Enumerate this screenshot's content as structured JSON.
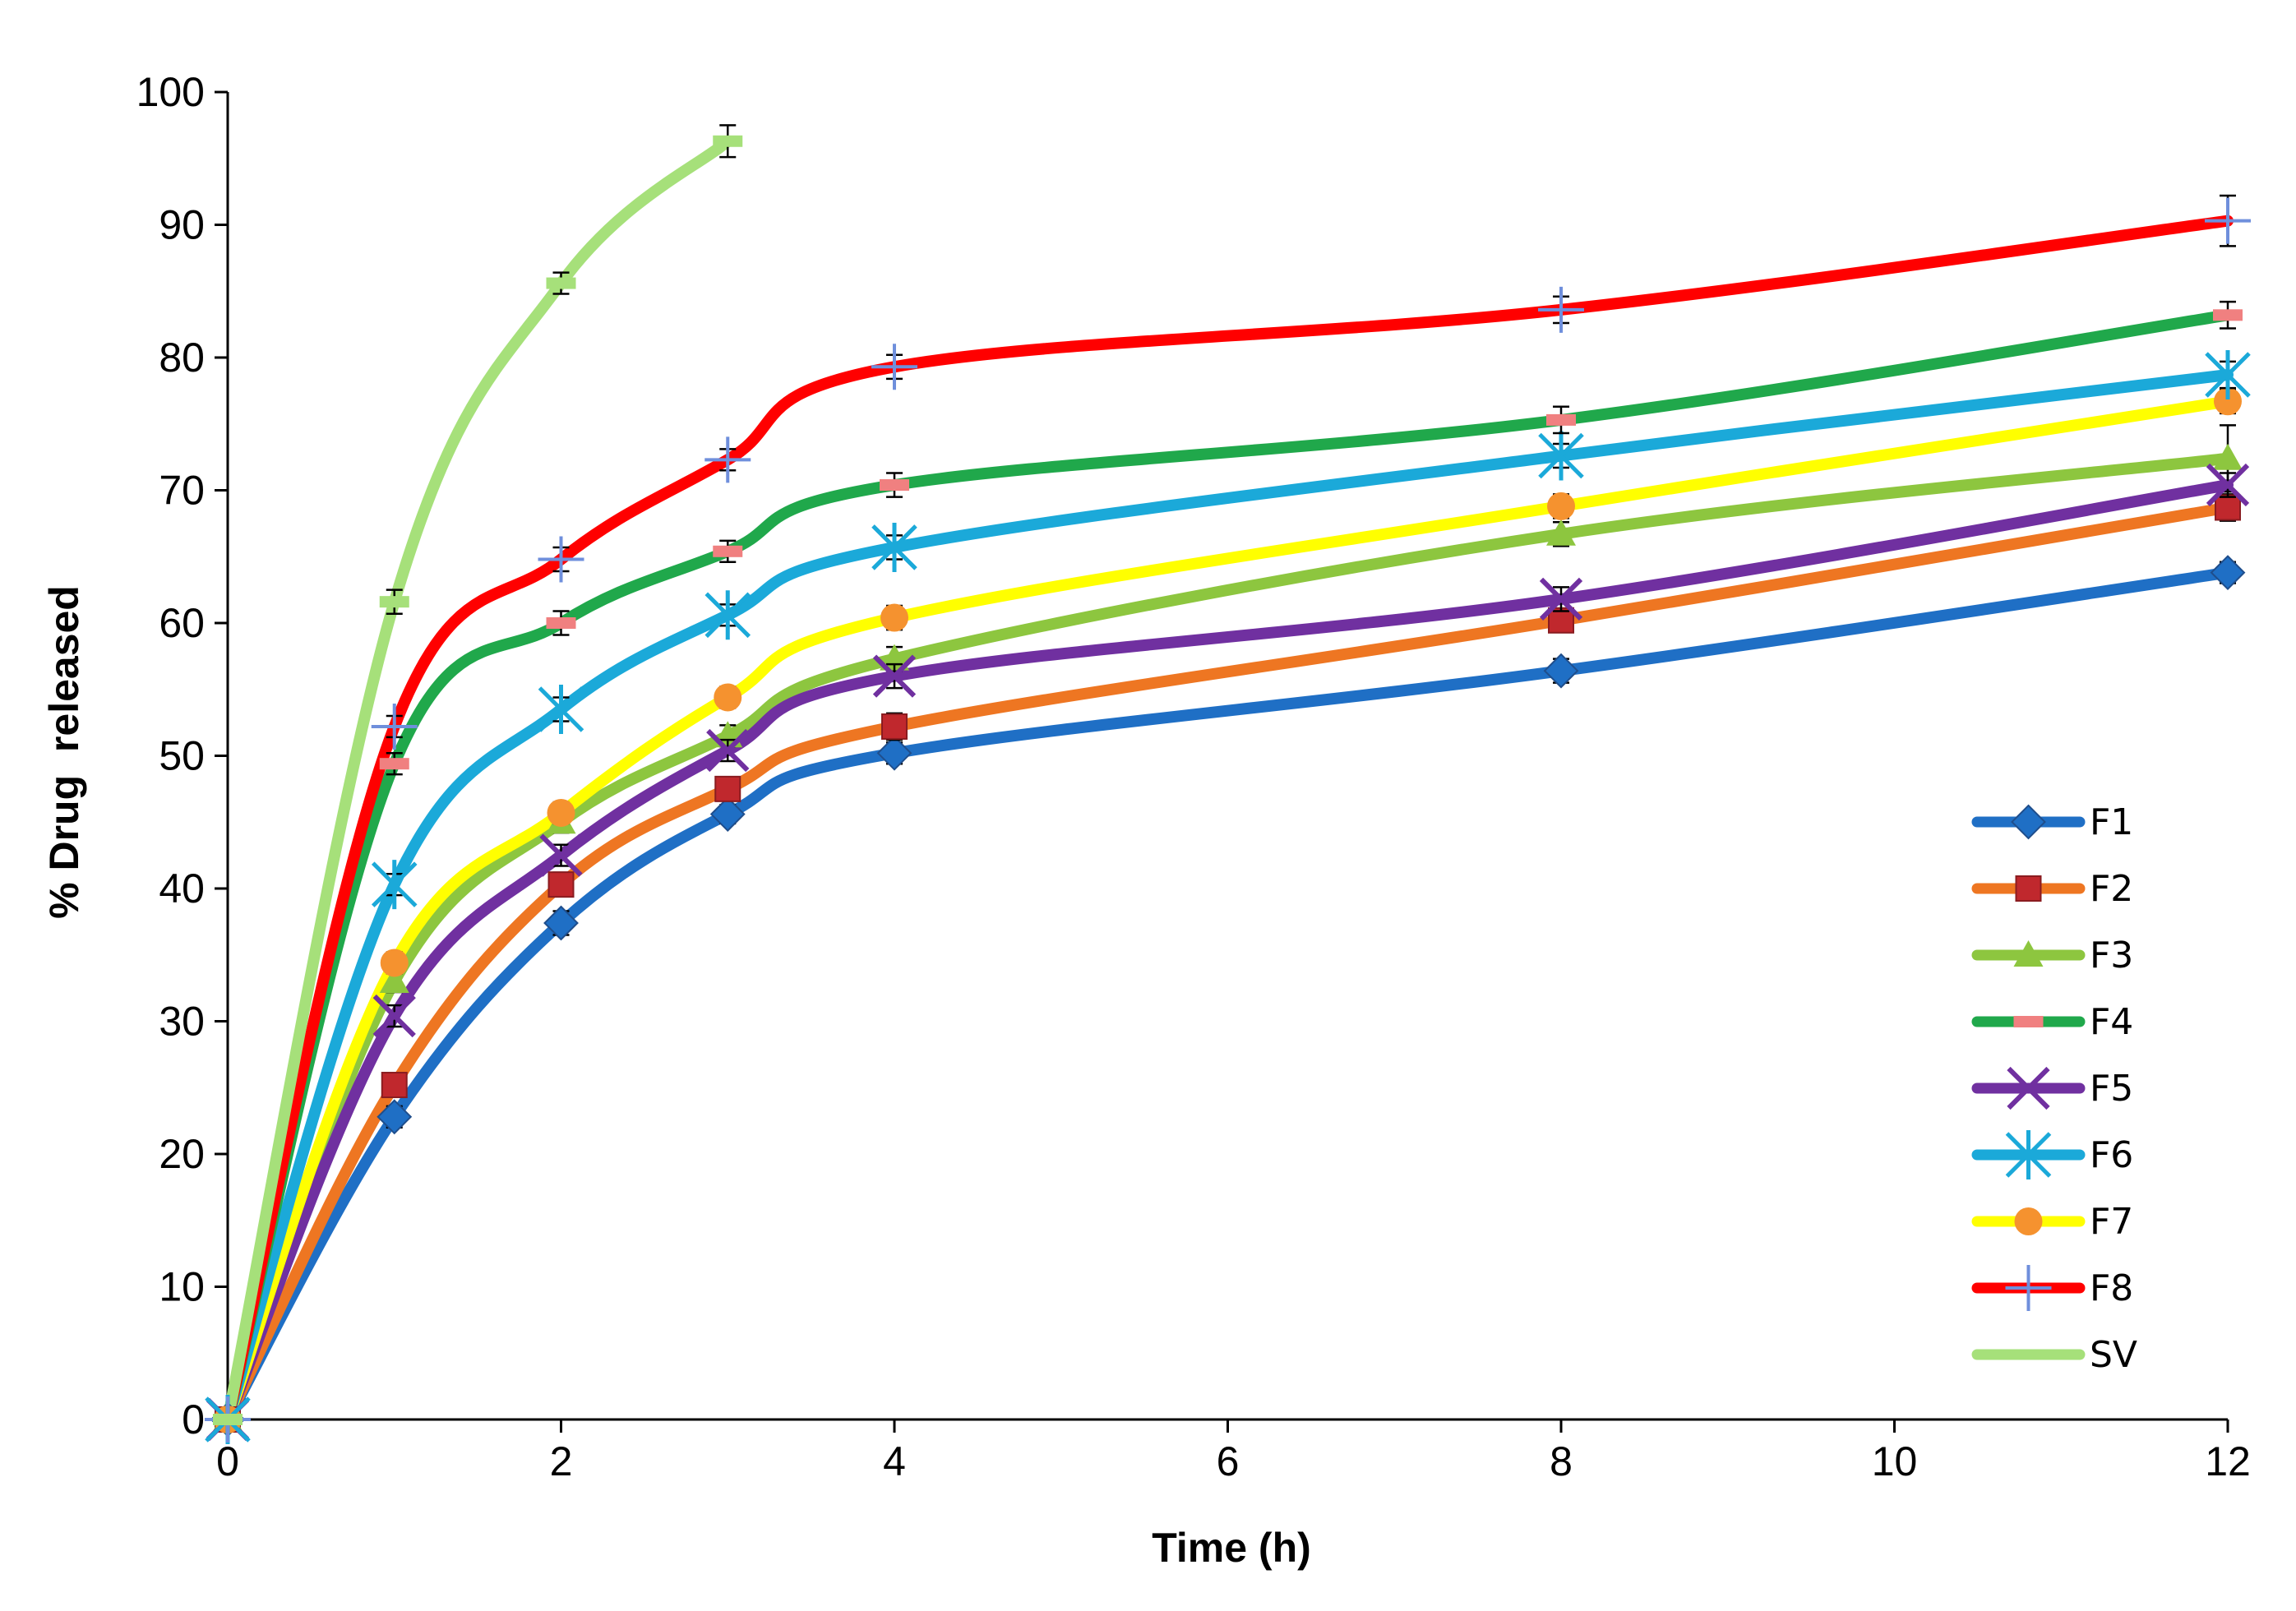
{
  "chart_data": {
    "type": "line",
    "title": "",
    "xlabel": "Time (h)",
    "ylabel": "% Drug  released",
    "xlim": [
      0,
      12
    ],
    "ylim": [
      0,
      100
    ],
    "xticks": [
      0,
      2,
      4,
      6,
      8,
      10,
      12
    ],
    "yticks": [
      0,
      10,
      20,
      30,
      40,
      50,
      60,
      70,
      80,
      90,
      100
    ],
    "grid": false,
    "legend_position": "bottom-right",
    "series": [
      {
        "name": "F1",
        "color": "#1f6fc5",
        "marker": "diamond",
        "x": [
          0,
          1,
          2,
          3,
          4,
          8,
          12
        ],
        "values": [
          0,
          22.8,
          37.4,
          45.6,
          50.2,
          56.4,
          63.8
        ],
        "errors": [
          0,
          0.8,
          0.9,
          0.7,
          0.8,
          0.9,
          0.8
        ]
      },
      {
        "name": "F2",
        "color": "#ee7622",
        "marker": "square",
        "x": [
          0,
          1,
          2,
          3,
          4,
          8,
          12
        ],
        "values": [
          0,
          25.2,
          40.3,
          47.5,
          52.2,
          60.2,
          68.7
        ],
        "errors": [
          0,
          0.8,
          0.9,
          0.8,
          1.0,
          0.9,
          1.0
        ]
      },
      {
        "name": "F3",
        "color": "#8dc63f",
        "marker": "triangle",
        "x": [
          0,
          1,
          2,
          3,
          4,
          8,
          12
        ],
        "values": [
          0,
          33.0,
          45.0,
          51.5,
          57.3,
          66.7,
          72.4
        ],
        "errors": [
          0,
          0.8,
          0.8,
          0.8,
          0.9,
          0.9,
          2.5
        ]
      },
      {
        "name": "F4",
        "color": "#20a84b",
        "marker": "dash",
        "x": [
          0,
          1,
          2,
          3,
          4,
          8,
          12
        ],
        "values": [
          0,
          49.4,
          60.0,
          65.4,
          70.4,
          75.3,
          83.2
        ],
        "errors": [
          0,
          0.8,
          0.9,
          0.8,
          0.9,
          1.0,
          1.0
        ]
      },
      {
        "name": "F5",
        "color": "#7030a0",
        "marker": "x",
        "x": [
          0,
          1,
          2,
          3,
          4,
          8,
          12
        ],
        "values": [
          0,
          30.4,
          42.5,
          50.4,
          56.0,
          61.8,
          70.4
        ],
        "errors": [
          0,
          0.8,
          0.8,
          0.8,
          0.9,
          0.9,
          0.9
        ]
      },
      {
        "name": "F6",
        "color": "#1ba9d9",
        "marker": "asterisk",
        "x": [
          0,
          1,
          2,
          3,
          4,
          8,
          12
        ],
        "values": [
          0,
          40.3,
          53.5,
          60.6,
          65.7,
          72.6,
          78.7
        ],
        "errors": [
          0,
          0.8,
          0.9,
          0.8,
          0.9,
          0.9,
          1.0
        ]
      },
      {
        "name": "F7",
        "color": "#ffff00",
        "marker": "circle",
        "x": [
          0,
          1,
          2,
          3,
          4,
          8,
          12
        ],
        "values": [
          0,
          34.4,
          45.7,
          54.4,
          60.4,
          68.8,
          76.7
        ],
        "errors": [
          0,
          0.8,
          0.8,
          0.8,
          0.9,
          0.9,
          0.9
        ]
      },
      {
        "name": "F8",
        "color": "#ff0000",
        "marker": "plus",
        "x": [
          0,
          1,
          2,
          3,
          4,
          8,
          12
        ],
        "values": [
          0,
          52.2,
          64.8,
          72.3,
          79.3,
          83.6,
          90.3
        ],
        "errors": [
          0,
          0.8,
          0.9,
          0.8,
          0.9,
          1.0,
          1.9
        ]
      },
      {
        "name": "SV",
        "color": "#a6e07a",
        "marker": "dash",
        "x": [
          0,
          1,
          2,
          3
        ],
        "values": [
          0,
          61.6,
          85.6,
          96.3
        ],
        "errors": [
          0,
          0.9,
          0.8,
          1.2
        ]
      }
    ]
  }
}
